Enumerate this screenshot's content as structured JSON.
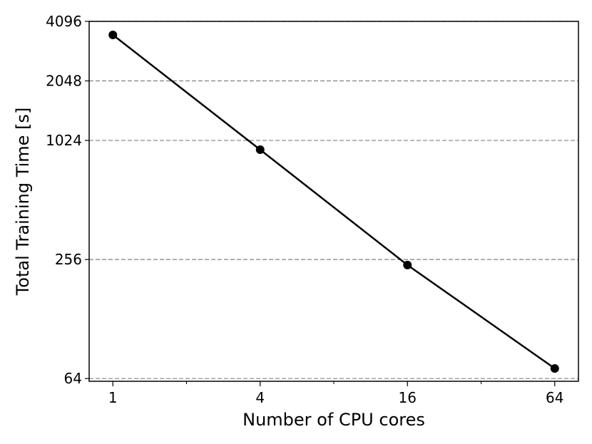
{
  "chart_data": {
    "type": "line",
    "xlabel": "Number of CPU cores",
    "ylabel": "Total Training Time [s]",
    "x_scale": "log2",
    "y_scale": "log2",
    "xlim": [
      0.8,
      80
    ],
    "ylim": [
      62,
      4096
    ],
    "xticks": [
      1,
      4,
      16,
      64
    ],
    "xtick_labels": [
      "1",
      "4",
      "16",
      "64"
    ],
    "yticks": [
      64,
      256,
      1024,
      2048,
      4096
    ],
    "ytick_labels": [
      "64",
      "256",
      "1024",
      "2048",
      "4096"
    ],
    "grid": "horizontal dashed at y ticks",
    "series": [
      {
        "x": [
          1,
          4,
          16,
          64
        ],
        "y": [
          3500,
          920,
          240,
          72
        ],
        "color": "#000000",
        "marker": "circle"
      }
    ]
  }
}
